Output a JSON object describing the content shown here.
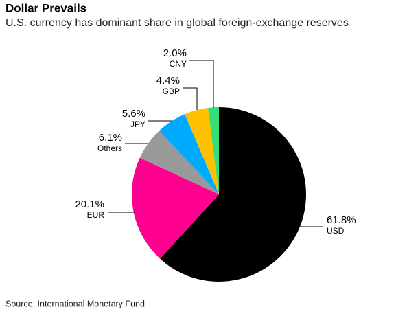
{
  "chart_data": {
    "type": "pie",
    "title": "Dollar Prevails",
    "subtitle": "U.S. currency has dominant share in global foreign-exchange reserves",
    "source": "Source: International Monetary Fund",
    "categories": [
      "USD",
      "EUR",
      "Others",
      "JPY",
      "GBP",
      "CNY"
    ],
    "values": [
      61.8,
      20.1,
      6.1,
      5.6,
      4.4,
      2.0
    ],
    "value_labels": [
      "61.8%",
      "20.1%",
      "6.1%",
      "5.6%",
      "4.4%",
      "2.0%"
    ],
    "colors": [
      "#000000",
      "#ff0090",
      "#999999",
      "#00aaff",
      "#ffc000",
      "#33dd77"
    ]
  }
}
